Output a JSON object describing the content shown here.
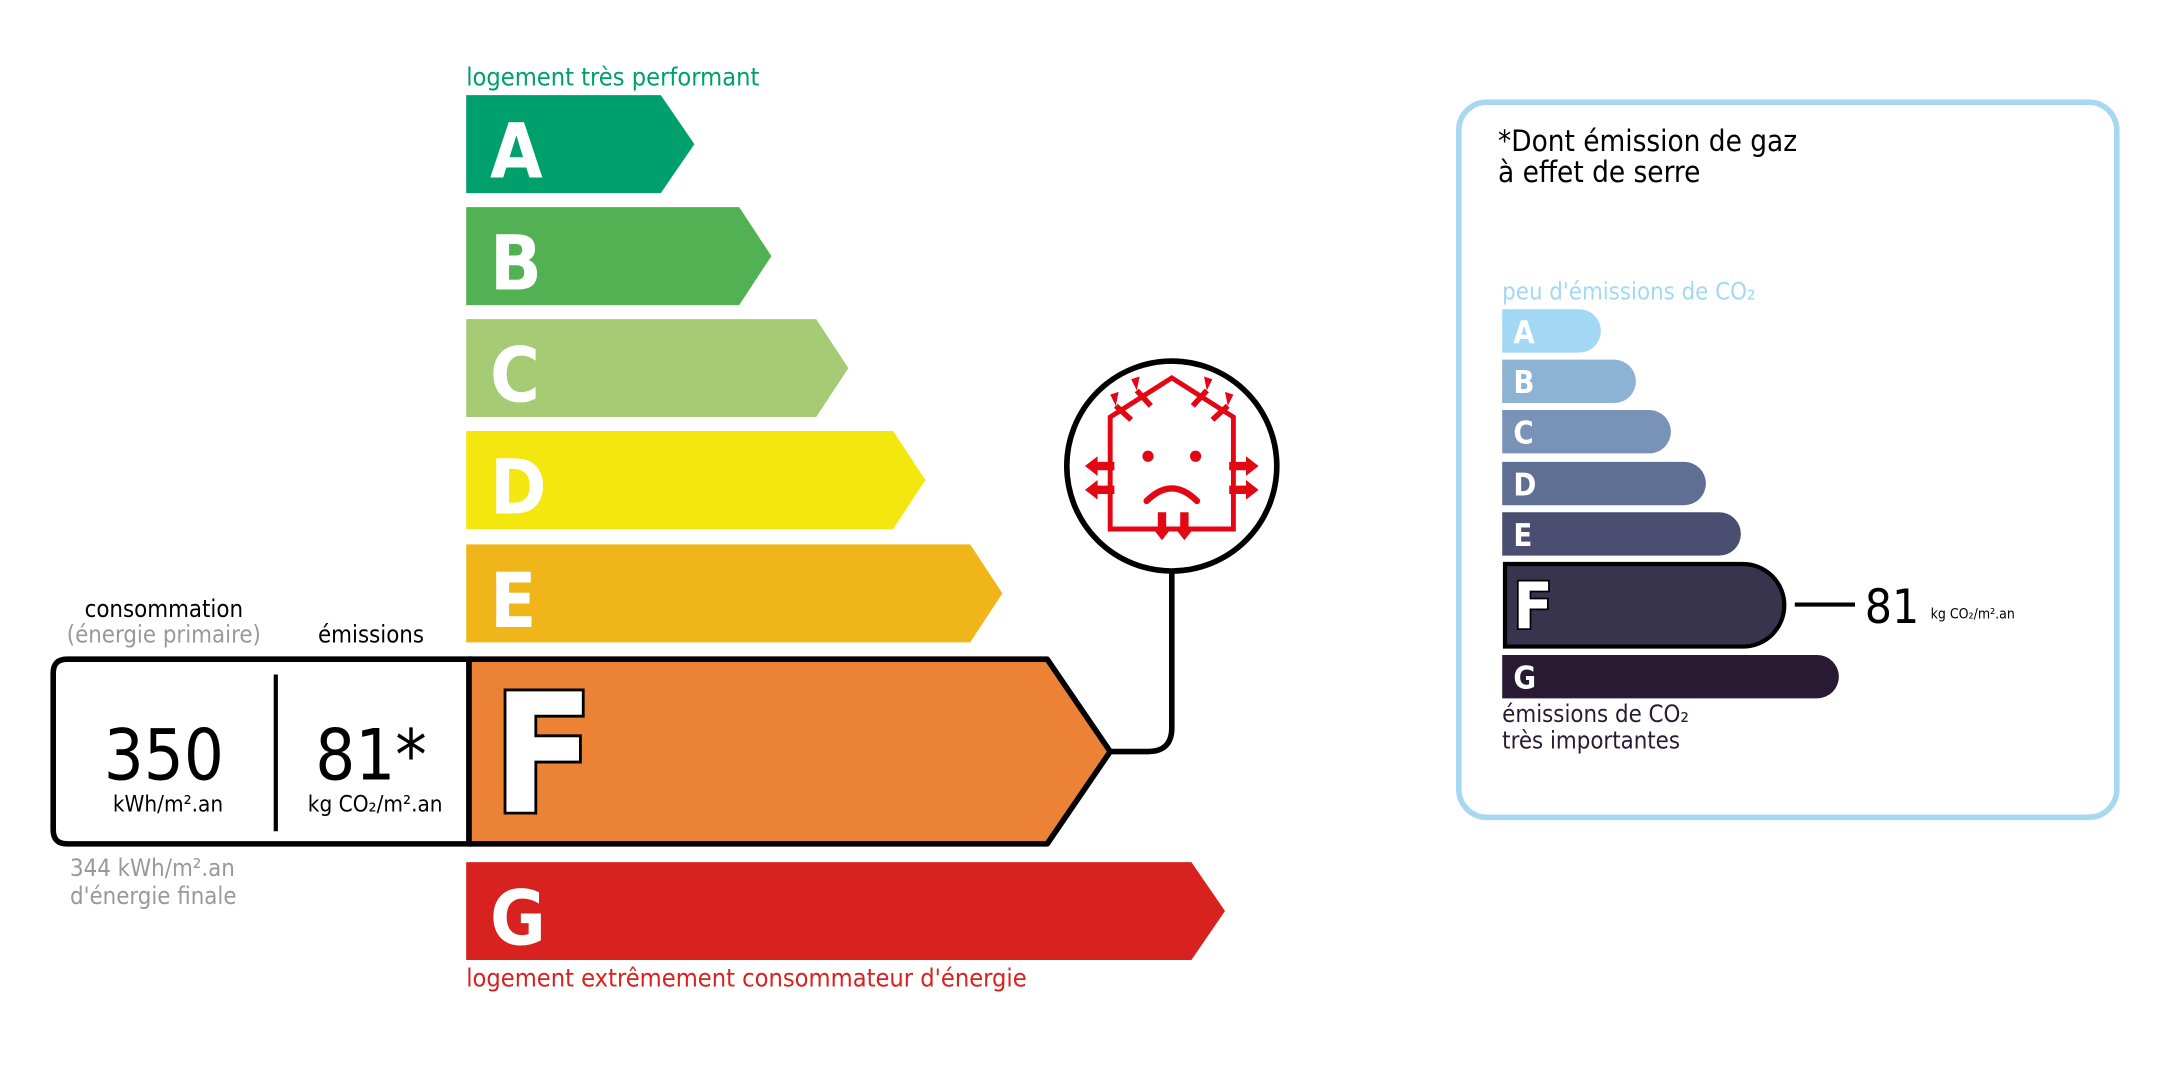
{
  "energy": {
    "top_label": "logement très performant",
    "bottom_label": "logement extrêmement consommateur d'énergie",
    "top_color": "#00a06d",
    "bottom_color": "#d7221f",
    "classes": [
      {
        "letter": "A",
        "color": "#00a06d"
      },
      {
        "letter": "B",
        "color": "#52b153"
      },
      {
        "letter": "C",
        "color": "#a5cc74"
      },
      {
        "letter": "D",
        "color": "#f4e70f"
      },
      {
        "letter": "E",
        "color": "#f0b619"
      },
      {
        "letter": "F",
        "color": "#eb8235"
      },
      {
        "letter": "G",
        "color": "#d7221f"
      }
    ],
    "current_class": "F",
    "consumption_label": "consommation",
    "consumption_sublabel": "(énergie primaire)",
    "emissions_label": "émissions",
    "consumption_value": "350",
    "consumption_unit": "kWh/m².an",
    "emissions_value": "81*",
    "emissions_unit": "kg CO₂/m².an",
    "final_energy_value": "344 kWh/m².an",
    "final_energy_label": "d'énergie finale",
    "icon": "poorly-insulated-house-sad-icon"
  },
  "ges": {
    "title_line1": "*Dont émission de gaz",
    "title_line2": "à effet de serre",
    "top_label": "peu d'émissions de CO₂",
    "bottom_label_line1": "émissions de CO₂",
    "bottom_label_line2": "très importantes",
    "border_color": "#a8d8f0",
    "classes": [
      {
        "letter": "A",
        "color": "#a3d8f4"
      },
      {
        "letter": "B",
        "color": "#8db3d4"
      },
      {
        "letter": "C",
        "color": "#7893b7"
      },
      {
        "letter": "D",
        "color": "#5f6e93"
      },
      {
        "letter": "E",
        "color": "#4b4e70"
      },
      {
        "letter": "F",
        "color": "#38344e"
      },
      {
        "letter": "G",
        "color": "#281a33"
      }
    ],
    "current_class": "F",
    "value": "81",
    "unit": "kg CO₂/m².an"
  }
}
